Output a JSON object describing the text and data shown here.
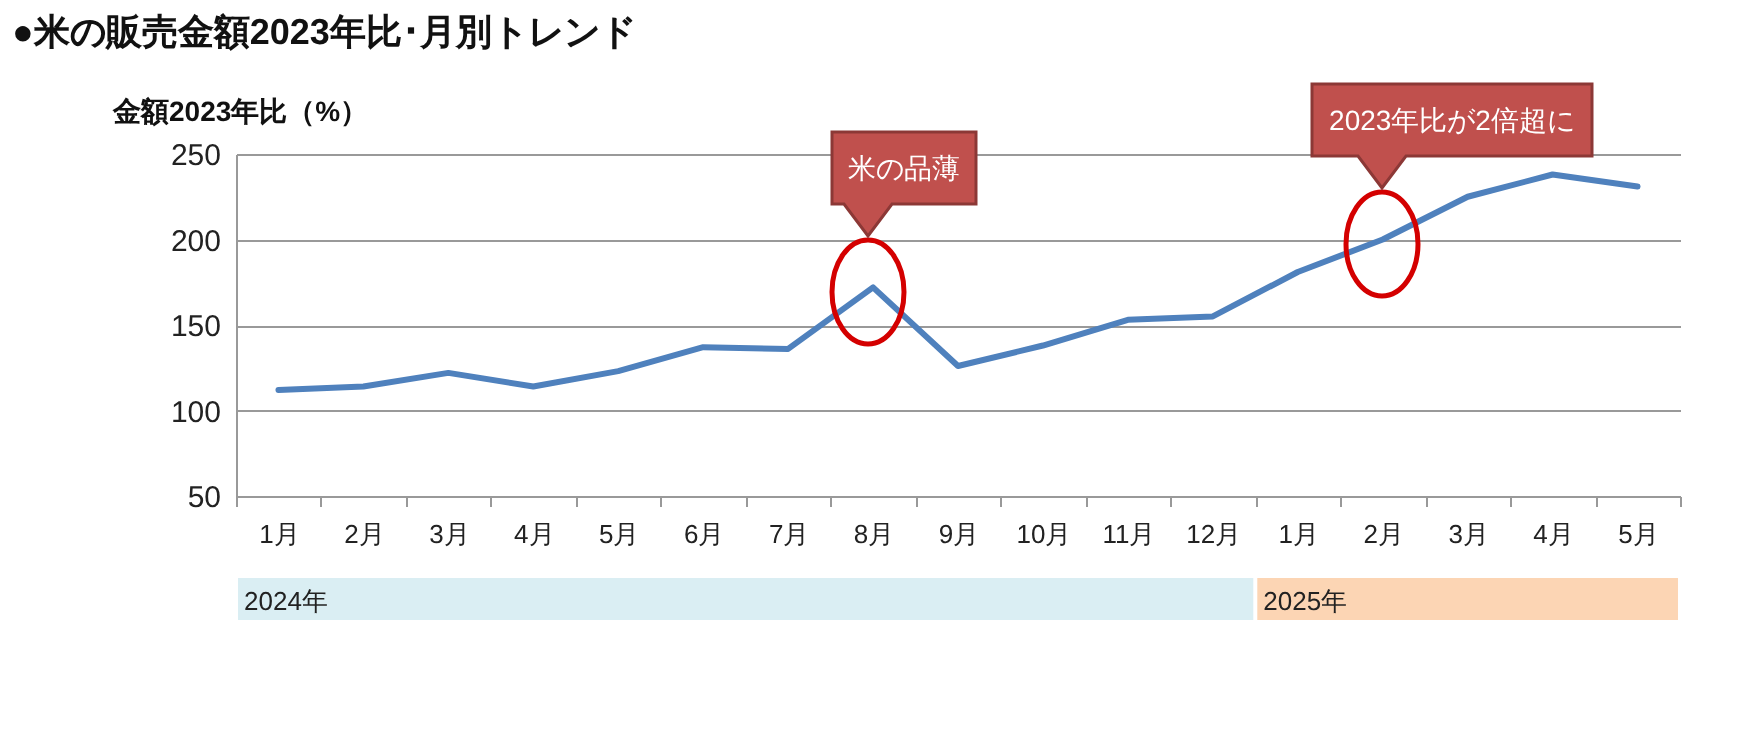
{
  "chart_data": {
    "type": "line",
    "title": "●米の販売金額2023年比･月別トレンド",
    "ylabel": "金額2023年比（%）",
    "categories": [
      "1月",
      "2月",
      "3月",
      "4月",
      "5月",
      "6月",
      "7月",
      "8月",
      "9月",
      "10月",
      "11月",
      "12月",
      "1月",
      "2月",
      "3月",
      "4月",
      "5月"
    ],
    "series": [
      {
        "color": "#4f81bd",
        "values": [
          112,
          114,
          122,
          114,
          123,
          137,
          136,
          172,
          126,
          138,
          153,
          155,
          181,
          200,
          225,
          238,
          231
        ]
      }
    ],
    "ylim": [
      50,
      250
    ],
    "yticks": [
      50,
      100,
      150,
      200,
      250
    ],
    "grid": "y",
    "legend": false,
    "marker": "none",
    "line_style": "solid",
    "annotations": [
      "米の品薄",
      "2023年比が2倍超に",
      "2024年",
      "2025年"
    ]
  }
}
